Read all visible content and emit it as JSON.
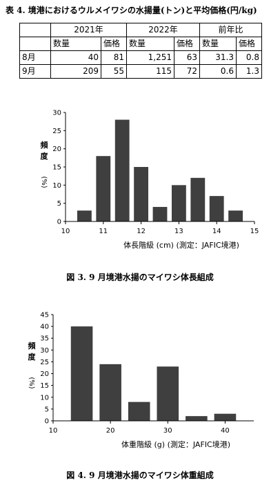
{
  "table": {
    "title": "表 4. 境港におけるウルメイワシの水揚量(トン)と平均価格(円/kg)",
    "group_headers": [
      "2021年",
      "2022年",
      "前年比"
    ],
    "sub_headers": [
      "数量",
      "価格",
      "数量",
      "価格",
      "数量",
      "価格"
    ],
    "rows": [
      {
        "label": "8月",
        "cells": [
          "40",
          "81",
          "1,251",
          "63",
          "31.3",
          "0.8"
        ]
      },
      {
        "label": "9月",
        "cells": [
          "209",
          "55",
          "115",
          "72",
          "0.6",
          "1.3"
        ]
      }
    ]
  },
  "chart_data": [
    {
      "type": "bar",
      "caption": "図 3. 9 月境港水揚のマイワシ体長組成",
      "ylabel": "頻度",
      "ylabel_unit": "(%)",
      "xlabel": "体長階級 (cm) (測定：JAFIC境港)",
      "ylim": [
        0,
        30
      ],
      "yticks": [
        0,
        5,
        10,
        15,
        20,
        25,
        30
      ],
      "xlim": [
        10,
        15
      ],
      "xticks": [
        10,
        11,
        12,
        13,
        14,
        15
      ],
      "x": [
        10.5,
        11.0,
        11.5,
        12.0,
        12.5,
        13.0,
        13.5,
        14.0,
        14.5
      ],
      "values": [
        3,
        18,
        28,
        15,
        4,
        10,
        12,
        7,
        3
      ]
    },
    {
      "type": "bar",
      "caption": "図 4. 9 月境港水揚のマイワシ体重組成",
      "ylabel": "頻度",
      "ylabel_unit": "(%)",
      "xlabel": "体重階級 (g) (測定：JAFIC境港)",
      "ylim": [
        0,
        45
      ],
      "yticks": [
        0,
        5,
        10,
        15,
        20,
        25,
        30,
        35,
        40,
        45
      ],
      "xlim": [
        10,
        45
      ],
      "xticks": [
        10,
        20,
        30,
        40
      ],
      "x": [
        15,
        20,
        25,
        30,
        35,
        40
      ],
      "values": [
        40,
        24,
        8,
        23,
        2,
        3
      ]
    }
  ]
}
